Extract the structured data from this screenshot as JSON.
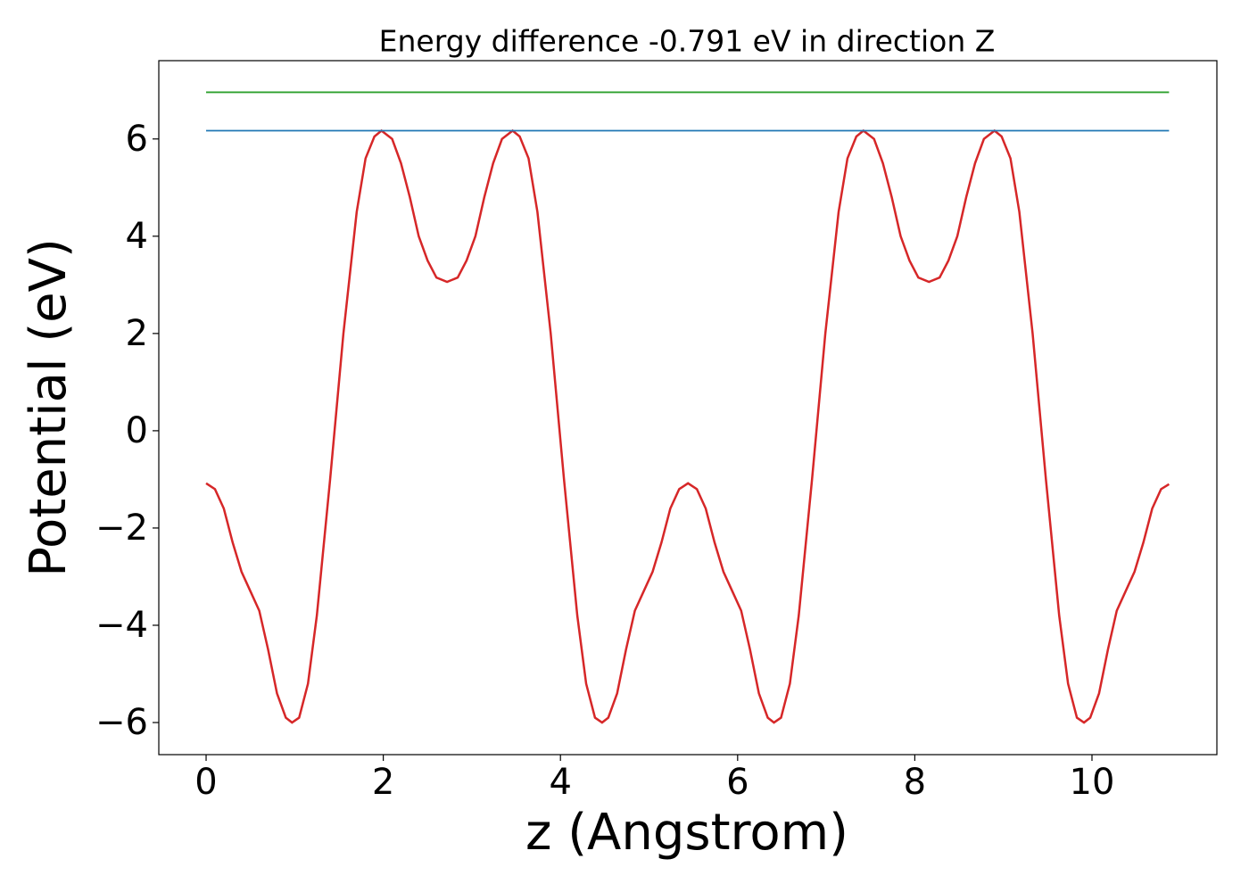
{
  "chart_data": {
    "type": "line",
    "title": "Energy difference -0.791 eV in direction Z",
    "x_label": "z (Angstrom)",
    "y_label": "Potential (eV)",
    "xlim": [
      -0.534,
      11.41
    ],
    "ylim": [
      -6.66,
      7.61
    ],
    "xticks": [
      0,
      2,
      4,
      6,
      8,
      10
    ],
    "yticks": [
      {
        "value": -6,
        "label": "−6"
      },
      {
        "value": -4,
        "label": "−4"
      },
      {
        "value": -2,
        "label": "−2"
      },
      0,
      2,
      4,
      6
    ],
    "series": [
      {
        "color": "#d62728",
        "x": [
          0,
          0.1,
          0.2,
          0.3,
          0.4,
          0.5,
          0.6,
          0.7,
          0.8,
          0.9,
          0.97,
          1.05,
          1.15,
          1.25,
          1.4,
          1.55,
          1.7,
          1.8,
          1.9,
          1.98,
          2.1,
          2.2,
          2.3,
          2.4,
          2.5,
          2.6,
          2.72,
          2.84,
          2.94,
          3.04,
          3.14,
          3.24,
          3.34,
          3.46,
          3.54,
          3.64,
          3.74,
          3.89,
          4.04,
          4.19,
          4.29,
          4.39,
          4.47,
          4.54,
          4.64,
          4.74,
          4.84,
          4.94,
          5.04,
          5.14,
          5.24,
          5.34,
          5.44,
          5.54,
          5.64,
          5.74,
          5.84,
          5.94,
          6.04,
          6.14,
          6.24,
          6.34,
          6.41,
          6.49,
          6.59,
          6.69,
          6.84,
          6.99,
          7.14,
          7.24,
          7.34,
          7.42,
          7.54,
          7.64,
          7.74,
          7.84,
          7.94,
          8.04,
          8.16,
          8.28,
          8.38,
          8.48,
          8.58,
          8.68,
          8.78,
          8.9,
          8.98,
          9.08,
          9.18,
          9.33,
          9.48,
          9.63,
          9.73,
          9.83,
          9.91,
          9.98,
          10.08,
          10.18,
          10.28,
          10.38,
          10.48,
          10.58,
          10.68,
          10.78,
          10.87
        ],
        "values": [
          -1.08,
          -1.2,
          -1.6,
          -2.3,
          -2.9,
          -3.3,
          -3.7,
          -4.5,
          -5.4,
          -5.9,
          -6.0,
          -5.9,
          -5.2,
          -3.8,
          -1.0,
          2.0,
          4.5,
          5.6,
          6.05,
          6.17,
          6.0,
          5.5,
          4.8,
          4.0,
          3.5,
          3.15,
          3.06,
          3.15,
          3.5,
          4.0,
          4.8,
          5.5,
          6.0,
          6.17,
          6.05,
          5.6,
          4.5,
          2.0,
          -1.0,
          -3.8,
          -5.2,
          -5.9,
          -6.0,
          -5.9,
          -5.4,
          -4.5,
          -3.7,
          -3.3,
          -2.9,
          -2.3,
          -1.6,
          -1.2,
          -1.08,
          -1.2,
          -1.6,
          -2.3,
          -2.9,
          -3.3,
          -3.7,
          -4.5,
          -5.4,
          -5.9,
          -6.0,
          -5.9,
          -5.2,
          -3.8,
          -1.0,
          2.0,
          4.5,
          5.6,
          6.05,
          6.17,
          6.0,
          5.5,
          4.8,
          4.0,
          3.5,
          3.15,
          3.06,
          3.15,
          3.5,
          4.0,
          4.8,
          5.5,
          6.0,
          6.17,
          6.05,
          5.6,
          4.5,
          2.0,
          -1.0,
          -3.8,
          -5.2,
          -5.9,
          -6.0,
          -5.9,
          -5.4,
          -4.5,
          -3.7,
          -3.3,
          -2.9,
          -2.3,
          -1.6,
          -1.2,
          -1.1
        ]
      },
      {
        "color": "#1f77b4",
        "x": [
          0,
          10.87
        ],
        "values": [
          6.17,
          6.17
        ]
      },
      {
        "color": "#2ca02c",
        "x": [
          0,
          10.87
        ],
        "values": [
          6.96,
          6.96
        ]
      }
    ]
  }
}
